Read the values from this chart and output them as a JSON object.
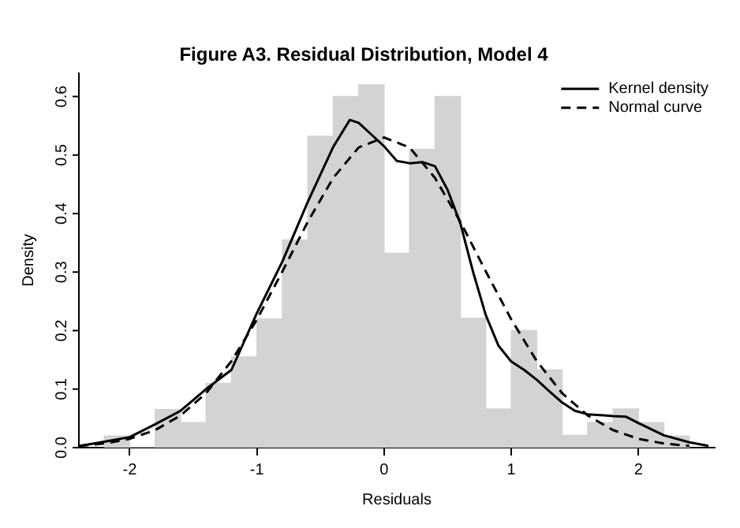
{
  "chart_data": {
    "type": "histogram",
    "title": "Figure A3. Residual Distribution, Model 4",
    "xlabel": "Residuals",
    "ylabel": "Density",
    "bins": [
      -2.2,
      -2.0,
      -1.8,
      -1.6,
      -1.4,
      -1.2,
      -1.0,
      -0.8,
      -0.6,
      -0.4,
      -0.2,
      0,
      0.2,
      0.4,
      0.6,
      0.8,
      1.0,
      1.2,
      1.4,
      1.6,
      1.8,
      2.0,
      2.2,
      2.4
    ],
    "values": [
      0.02,
      0,
      0.065,
      0.043,
      0.11,
      0.155,
      0.22,
      0.355,
      0.532,
      0.6,
      0.62,
      0.332,
      0.51,
      0.6,
      0.221,
      0.066,
      0.2,
      0.133,
      0.021,
      0.043,
      0.066,
      0.043,
      0.02
    ],
    "color": "#d3d3d3",
    "series": [
      {
        "name": "Kernel density",
        "type": "line",
        "color": "#000000",
        "line_style": "solid",
        "x": [
          -2.39,
          -2.2,
          -2.0,
          -1.8,
          -1.6,
          -1.4,
          -1.2,
          -1.0,
          -0.8,
          -0.6,
          -0.4,
          -0.27,
          -0.2,
          -0.1,
          0,
          0.1,
          0.2,
          0.3,
          0.4,
          0.5,
          0.6,
          0.7,
          0.8,
          0.9,
          1.0,
          1.1,
          1.2,
          1.3,
          1.4,
          1.5,
          1.6,
          1.8,
          1.9,
          2.0,
          2.2,
          2.4,
          2.55
        ],
        "values": [
          0.003,
          0.01,
          0.018,
          0.04,
          0.063,
          0.1,
          0.133,
          0.23,
          0.318,
          0.42,
          0.514,
          0.56,
          0.555,
          0.535,
          0.515,
          0.49,
          0.486,
          0.488,
          0.481,
          0.44,
          0.383,
          0.3,
          0.226,
          0.174,
          0.147,
          0.133,
          0.116,
          0.096,
          0.077,
          0.063,
          0.057,
          0.054,
          0.053,
          0.042,
          0.021,
          0.009,
          0.003
        ]
      },
      {
        "name": "Normal curve",
        "type": "line",
        "color": "#000000",
        "line_style": "dashed",
        "x": [
          -2.4,
          -2.2,
          -2.0,
          -1.8,
          -1.6,
          -1.4,
          -1.2,
          -1.0,
          -0.8,
          -0.6,
          -0.4,
          -0.2,
          0,
          0.2,
          0.4,
          0.6,
          0.8,
          1.0,
          1.2,
          1.4,
          1.6,
          1.8,
          2.0,
          2.2,
          2.4
        ],
        "values": [
          0.003,
          0.007,
          0.015,
          0.03,
          0.055,
          0.093,
          0.148,
          0.219,
          0.301,
          0.386,
          0.461,
          0.513,
          0.53,
          0.513,
          0.461,
          0.386,
          0.301,
          0.219,
          0.148,
          0.093,
          0.055,
          0.03,
          0.015,
          0.007,
          0.003
        ]
      }
    ],
    "xlim": [
      -2.4,
      2.6
    ],
    "ylim": [
      0,
      0.64
    ],
    "xticks": [
      -2,
      -1,
      0,
      1,
      2
    ],
    "yticks": [
      {
        "value": 0,
        "label": "0.0"
      },
      {
        "value": 0.1,
        "label": "0.1"
      },
      {
        "value": 0.2,
        "label": "0.2"
      },
      {
        "value": 0.3,
        "label": "0.3"
      },
      {
        "value": 0.4,
        "label": "0.4"
      },
      {
        "value": 0.5,
        "label": "0.5"
      },
      {
        "value": 0.6,
        "label": "0.6"
      }
    ],
    "grid": false,
    "legend": "top right"
  }
}
